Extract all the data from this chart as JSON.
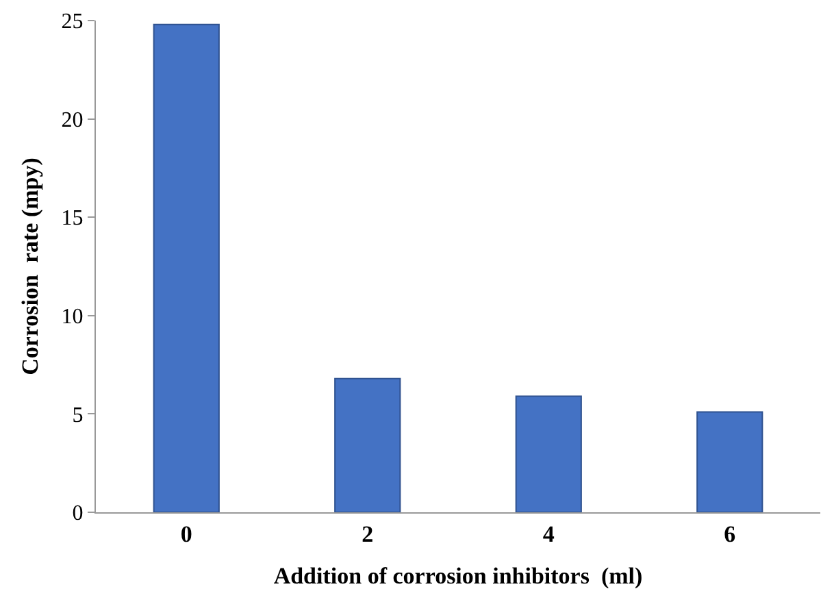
{
  "chart_data": {
    "type": "bar",
    "xlabel": "Addition of corrosion inhibitors  (ml)",
    "ylabel": "Corrosion  rate (mpy)",
    "categories": [
      "0",
      "2",
      "4",
      "6"
    ],
    "values": [
      24.8,
      6.8,
      5.9,
      5.1
    ],
    "color": "#4472c4",
    "ylim": [
      0,
      25
    ],
    "yticks": [
      0,
      5,
      10,
      15,
      20,
      25
    ]
  }
}
